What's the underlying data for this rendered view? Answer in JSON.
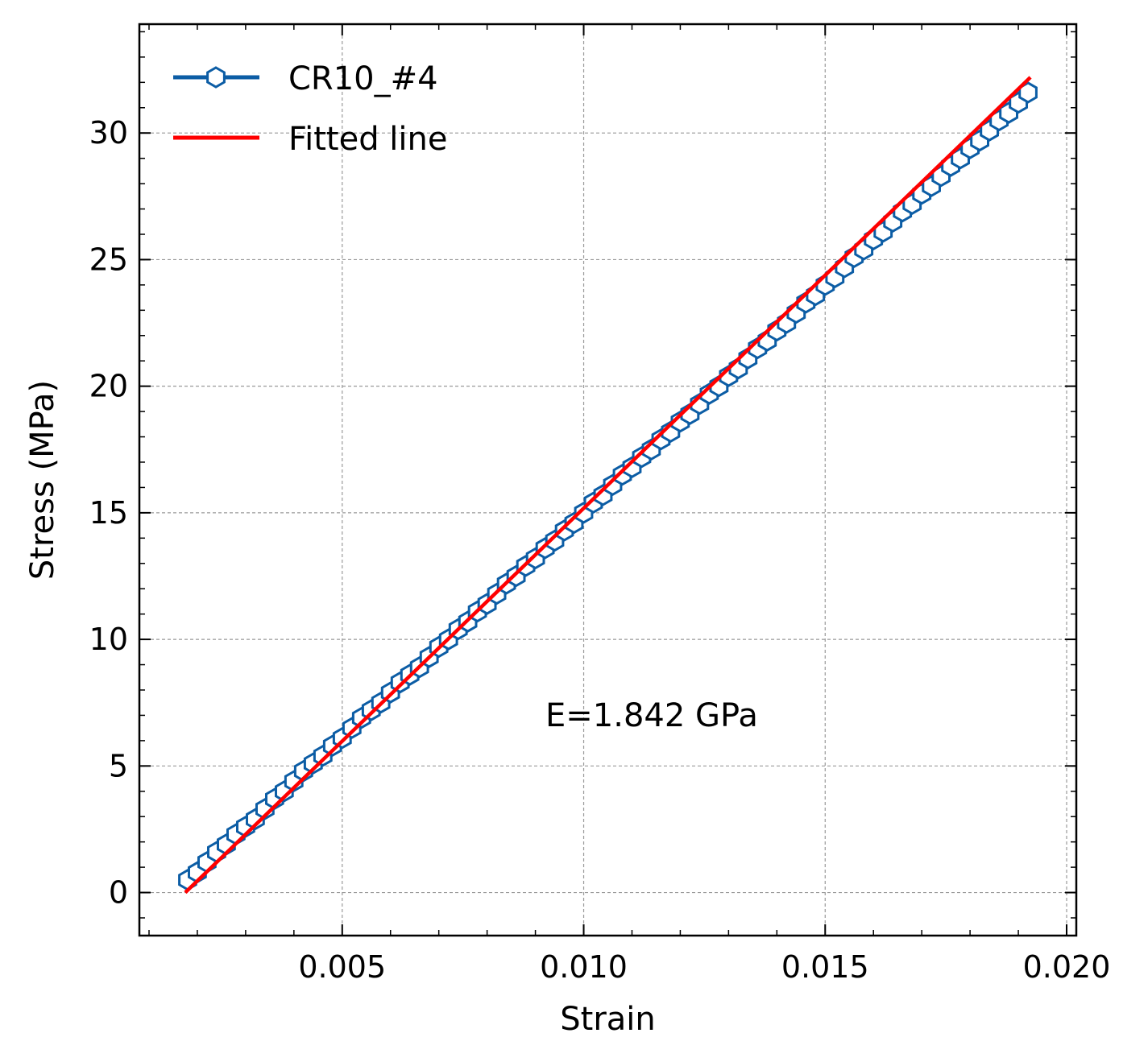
{
  "chart_data": {
    "type": "scatter",
    "title": "",
    "xlabel": "Strain",
    "ylabel": "Stress (MPa)",
    "xlim": [
      0.0008,
      0.0202
    ],
    "ylim": [
      -1.7,
      34.3
    ],
    "grid": true,
    "legend_position": "top-left",
    "x_ticks": [
      0.005,
      0.01,
      0.015,
      0.02
    ],
    "x_tick_labels": [
      "0.005",
      "0.010",
      "0.015",
      "0.020"
    ],
    "y_ticks": [
      0,
      5,
      10,
      15,
      20,
      25,
      30
    ],
    "y_tick_labels": [
      "0",
      "5",
      "10",
      "15",
      "20",
      "25",
      "30"
    ],
    "annotation": "E=1.842 GPa",
    "series": [
      {
        "name": "CR10_#4",
        "color": "#0c5da5",
        "marker": "hexagon-open",
        "x": [
          0.0018,
          0.002,
          0.0022,
          0.0024,
          0.0026,
          0.0028,
          0.003,
          0.0032,
          0.0034,
          0.0036,
          0.0038,
          0.004,
          0.0042,
          0.0044,
          0.0046,
          0.0048,
          0.005,
          0.0052,
          0.0054,
          0.0056,
          0.0058,
          0.006,
          0.0062,
          0.0064,
          0.0066,
          0.0068,
          0.007,
          0.0072,
          0.0074,
          0.0076,
          0.0078,
          0.008,
          0.0082,
          0.0084,
          0.0086,
          0.0088,
          0.009,
          0.0092,
          0.0094,
          0.0096,
          0.0098,
          0.01,
          0.0102,
          0.0104,
          0.0106,
          0.0108,
          0.011,
          0.0112,
          0.0114,
          0.0116,
          0.0118,
          0.012,
          0.0122,
          0.0124,
          0.0126,
          0.0128,
          0.013,
          0.0132,
          0.0134,
          0.0136,
          0.0138,
          0.014,
          0.0142,
          0.0144,
          0.0146,
          0.0148,
          0.015,
          0.0152,
          0.0154,
          0.0156,
          0.0158,
          0.016,
          0.0162,
          0.0164,
          0.0166,
          0.0168,
          0.017,
          0.0172,
          0.0174,
          0.0176,
          0.0178,
          0.018,
          0.0182,
          0.0184,
          0.0186,
          0.0188,
          0.019,
          0.0192
        ],
        "y": [
          0.5,
          0.8,
          1.2,
          1.6,
          1.9,
          2.3,
          2.6,
          2.9,
          3.3,
          3.7,
          4.0,
          4.4,
          4.8,
          5.1,
          5.4,
          5.8,
          6.1,
          6.5,
          6.9,
          7.2,
          7.5,
          7.9,
          8.3,
          8.6,
          8.9,
          9.3,
          9.7,
          10.0,
          10.4,
          10.7,
          11.1,
          11.4,
          11.8,
          12.2,
          12.5,
          12.9,
          13.2,
          13.6,
          13.9,
          14.3,
          14.6,
          15.0,
          15.4,
          15.7,
          16.1,
          16.5,
          16.8,
          17.2,
          17.5,
          17.9,
          18.2,
          18.6,
          18.9,
          19.3,
          19.7,
          20.0,
          20.4,
          20.7,
          21.1,
          21.5,
          21.8,
          22.2,
          22.5,
          22.9,
          23.3,
          23.6,
          24.0,
          24.3,
          24.7,
          25.1,
          25.4,
          25.8,
          26.1,
          26.5,
          26.9,
          27.2,
          27.6,
          27.9,
          28.3,
          28.7,
          29.0,
          29.4,
          29.7,
          30.1,
          30.5,
          30.8,
          31.2,
          31.6
        ]
      },
      {
        "name": "Fitted line",
        "color": "#ff0000",
        "marker": "none",
        "x": [
          0.00175,
          0.01925
        ],
        "y": [
          0.0,
          32.2
        ]
      }
    ]
  }
}
